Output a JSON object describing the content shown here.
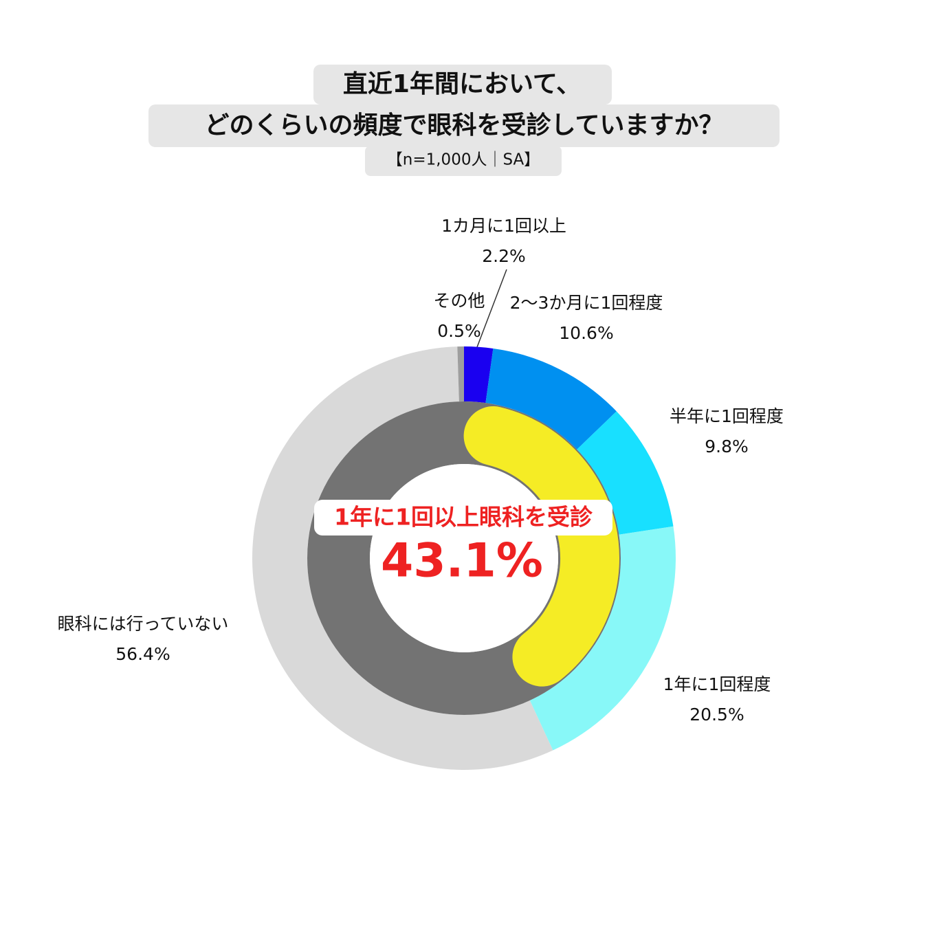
{
  "chart_data": {
    "type": "donut",
    "title_lines": [
      "直近1年間において、",
      "どのくらいの頻度で眼科を受診していますか？"
    ],
    "subtitle": "【n=1,000人｜SA】",
    "categories": [
      "1カ月に1回以上",
      "2～3か月に1回程度",
      "半年に1回程度",
      "1年に1回程度",
      "眼科には行っていない",
      "その他"
    ],
    "values": [
      2.2,
      10.6,
      9.8,
      20.5,
      56.4,
      0.5
    ],
    "value_labels": [
      "2.2%",
      "10.6%",
      "9.8%",
      "20.5%",
      "56.4%",
      "0.5%"
    ],
    "colors": [
      "#1a00f0",
      "#0090f0",
      "#18e0ff",
      "#88f8f8",
      "#d9d9d9",
      "#9e9e9e"
    ],
    "highlight": {
      "label": "1年に1回以上眼科を受診",
      "value": 43.1,
      "value_label": "43.1%",
      "color": "#f5ec25",
      "text_color": "#ee2222"
    }
  }
}
